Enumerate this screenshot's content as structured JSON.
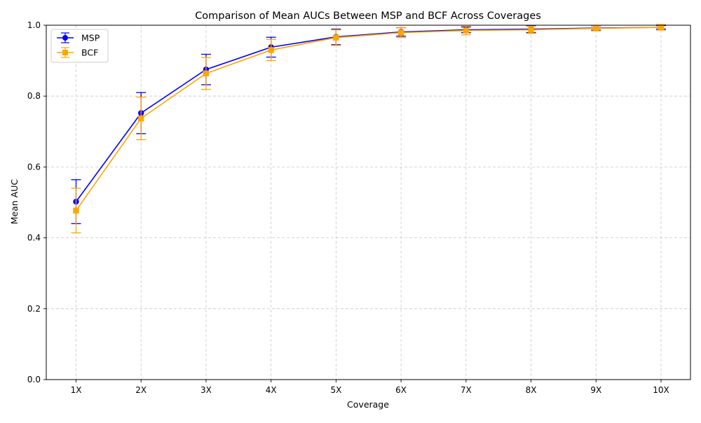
{
  "chart_data": {
    "type": "line",
    "title": "Comparison of Mean AUCs Between MSP and BCF Across Coverages",
    "xlabel": "Coverage",
    "ylabel": "Mean AUC",
    "categories": [
      "1X",
      "2X",
      "3X",
      "4X",
      "5X",
      "6X",
      "7X",
      "8X",
      "9X",
      "10X"
    ],
    "ylim": [
      0,
      1.0
    ],
    "yticks": [
      "0.0",
      "0.2",
      "0.4",
      "0.6",
      "0.8",
      "1.0"
    ],
    "grid": true,
    "legend_position": "top-left",
    "series": [
      {
        "name": "MSP",
        "color": "#0000ff",
        "marker": "circle",
        "values": [
          0.502,
          0.752,
          0.875,
          0.938,
          0.967,
          0.981,
          0.987,
          0.989,
          0.992,
          0.994
        ],
        "errors": [
          0.062,
          0.058,
          0.043,
          0.028,
          0.022,
          0.012,
          0.008,
          0.01,
          0.006,
          0.005
        ]
      },
      {
        "name": "BCF",
        "color": "#ffa500",
        "marker": "square",
        "values": [
          0.477,
          0.737,
          0.864,
          0.93,
          0.965,
          0.979,
          0.985,
          0.987,
          0.991,
          0.994
        ],
        "errors": [
          0.063,
          0.06,
          0.045,
          0.03,
          0.022,
          0.014,
          0.012,
          0.01,
          0.007,
          0.008
        ]
      }
    ]
  }
}
